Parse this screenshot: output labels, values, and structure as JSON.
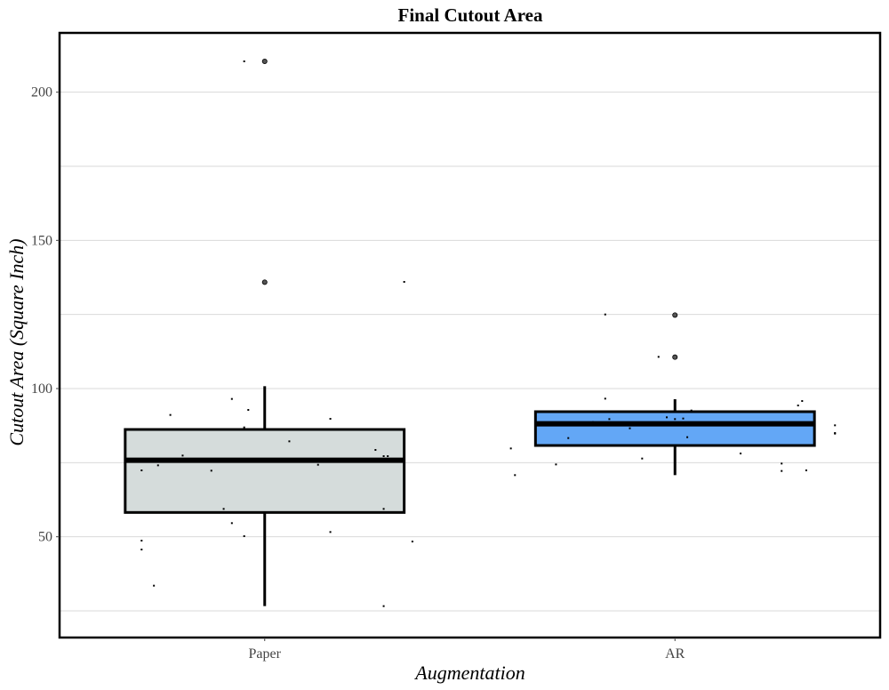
{
  "chart_data": {
    "type": "box",
    "title": "Final Cutout Area",
    "xlabel": "Augmentation",
    "ylabel": "Cutout Area (Square Inch)",
    "ylim": [
      16,
      220
    ],
    "y_ticks": [
      50,
      100,
      150,
      200
    ],
    "y_tick_labels": [
      "50",
      "100",
      "150",
      "200"
    ],
    "grid": true,
    "colors": {
      "Paper": "#d5dcdb",
      "AR": "#63a7f6",
      "points": "#000000",
      "grid": "#d9d9d9"
    },
    "categories": [
      "Paper",
      "AR"
    ],
    "boxes": [
      {
        "category": "Paper",
        "q1": 58.2,
        "median": 75.8,
        "q3": 86.2,
        "whisker_low": 26.6,
        "whisker_high": 100.8,
        "outliers": [
          210.4,
          135.9
        ],
        "points": [
          [
            -0.3,
            48.7
          ],
          [
            -0.3,
            45.7
          ],
          [
            -0.27,
            33.5
          ],
          [
            -0.3,
            72.4
          ],
          [
            -0.26,
            74.1
          ],
          [
            -0.23,
            91.1
          ],
          [
            -0.2,
            77.4
          ],
          [
            -0.13,
            72.3
          ],
          [
            -0.1,
            59.4
          ],
          [
            -0.08,
            54.6
          ],
          [
            -0.08,
            96.5
          ],
          [
            -0.05,
            86.9
          ],
          [
            -0.05,
            50.2
          ],
          [
            -0.04,
            92.8
          ],
          [
            -0.05,
            210.4
          ],
          [
            0.06,
            82.2
          ],
          [
            0.13,
            74.3
          ],
          [
            0.16,
            89.8
          ],
          [
            0.16,
            51.6
          ],
          [
            0.27,
            79.3
          ],
          [
            0.29,
            77.2
          ],
          [
            0.3,
            77.2
          ],
          [
            0.29,
            59.4
          ],
          [
            0.29,
            26.6
          ],
          [
            0.34,
            136.0
          ],
          [
            0.36,
            48.4
          ]
        ]
      },
      {
        "category": "AR",
        "q1": 80.8,
        "median": 88.1,
        "q3": 92.2,
        "whisker_low": 70.8,
        "whisker_high": 96.4,
        "outliers": [
          124.8,
          110.6
        ],
        "points": [
          [
            -0.4,
            79.8
          ],
          [
            -0.39,
            70.8
          ],
          [
            -0.29,
            74.4
          ],
          [
            -0.26,
            83.3
          ],
          [
            -0.2,
            88.7
          ],
          [
            -0.17,
            96.6
          ],
          [
            -0.16,
            89.7
          ],
          [
            -0.17,
            125.0
          ],
          [
            -0.11,
            86.6
          ],
          [
            -0.08,
            76.4
          ],
          [
            -0.04,
            110.7
          ],
          [
            -0.02,
            90.3
          ],
          [
            0.0,
            89.7
          ],
          [
            0.02,
            89.9
          ],
          [
            0.04,
            92.6
          ],
          [
            0.03,
            83.6
          ],
          [
            0.16,
            78.1
          ],
          [
            0.26,
            74.7
          ],
          [
            0.26,
            72.2
          ],
          [
            0.3,
            94.3
          ],
          [
            0.31,
            95.8
          ],
          [
            0.32,
            92.3
          ],
          [
            0.32,
            72.4
          ],
          [
            0.39,
            87.6
          ],
          [
            0.39,
            85.0
          ],
          [
            0.39,
            84.8
          ]
        ]
      }
    ]
  }
}
